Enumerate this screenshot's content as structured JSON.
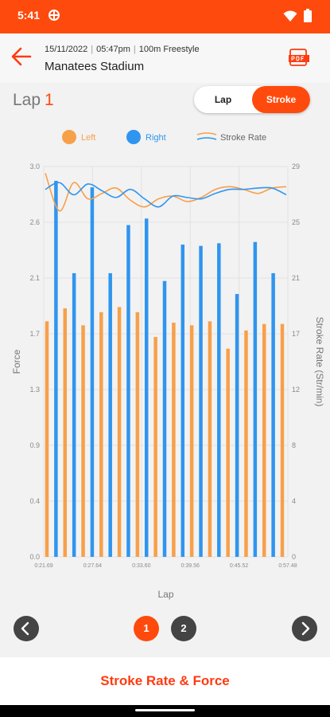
{
  "status": {
    "time": "5:41"
  },
  "header": {
    "date": "15/11/2022",
    "time": "05:47pm",
    "event": "100m  Freestyle",
    "venue": "Manatees Stadium"
  },
  "lap_selector": {
    "label": "Lap",
    "value": "1"
  },
  "segment": {
    "lap_label": "Lap",
    "stroke_label": "Stroke",
    "selected": "Stroke"
  },
  "colors": {
    "accent": "#ff4a0d",
    "left": "#f7a04a",
    "right": "#2f95ef",
    "dark": "#444444"
  },
  "chart_data": {
    "type": "bar",
    "xlabel": "Lap",
    "ylabel": "Force",
    "y2label": "Stroke Rate (Str/min)",
    "ylim": [
      0,
      3.0
    ],
    "y2lim": [
      0,
      29
    ],
    "yticks": [
      "0.0",
      "0.4",
      "0.9",
      "1.3",
      "1.7",
      "2.1",
      "2.6",
      "3.0"
    ],
    "y2ticks": [
      "0",
      "4",
      "8",
      "12",
      "17",
      "21",
      "25",
      "29"
    ],
    "xticks": [
      "0:21.69",
      "0:27.64",
      "0:33.60",
      "0:39.56",
      "0:45.52",
      "0:57.48"
    ],
    "legend": [
      "Left",
      "Right",
      "Stroke Rate"
    ],
    "series": [
      {
        "name": "Left",
        "values": [
          1.81,
          1.91,
          1.78,
          1.88,
          1.92,
          1.88,
          1.69,
          1.8,
          1.78,
          1.81,
          1.6,
          1.74,
          1.79,
          1.79
        ]
      },
      {
        "name": "Right",
        "values": [
          2.89,
          2.18,
          2.84,
          2.18,
          2.55,
          2.6,
          2.12,
          2.4,
          2.39,
          2.41,
          2.02,
          2.42,
          2.18
        ]
      }
    ],
    "stroke_rate": {
      "left_line": [
        28.5,
        25.7,
        27.8,
        26.6,
        27.0,
        27.4,
        26.5,
        26.0,
        26.6,
        26.8,
        26.4,
        26.7,
        27.3,
        27.5,
        27.3,
        27.0,
        27.4,
        27.5
      ],
      "right_line": [
        27.3,
        27.8,
        26.9,
        27.7,
        27.2,
        26.7,
        27.3,
        26.6,
        26.0,
        26.8,
        26.7,
        26.6,
        27.0,
        27.3,
        27.3,
        27.4,
        27.4,
        26.9
      ]
    }
  },
  "pager": {
    "pages": [
      "1",
      "2"
    ],
    "current": "1"
  },
  "footer": {
    "title": "Stroke Rate & Force"
  }
}
